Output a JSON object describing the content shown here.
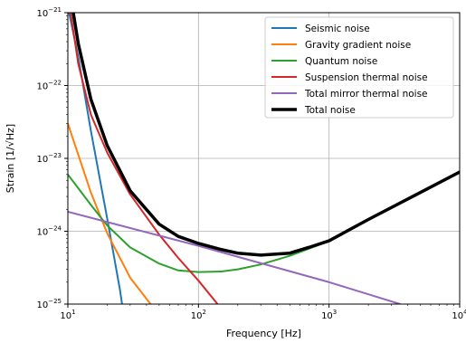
{
  "chart_data": {
    "type": "line",
    "xlabel": "Frequency [Hz]",
    "ylabel": "Strain [1/√Hz]",
    "x_scale": "log",
    "y_scale": "log",
    "xlim": [
      10,
      10000
    ],
    "ylim": [
      1e-25,
      1e-21
    ],
    "grid": true,
    "legend_position": "top-right",
    "x_ticks": [
      {
        "value": 10,
        "base": "10",
        "exp": "1"
      },
      {
        "value": 100,
        "base": "10",
        "exp": "2"
      },
      {
        "value": 1000,
        "base": "10",
        "exp": "3"
      },
      {
        "value": 10000,
        "base": "10",
        "exp": "4"
      }
    ],
    "y_ticks": [
      {
        "value": 1e-25,
        "base": "10",
        "exp": "−25"
      },
      {
        "value": 1e-24,
        "base": "10",
        "exp": "−24"
      },
      {
        "value": 1e-23,
        "base": "10",
        "exp": "−23"
      },
      {
        "value": 1e-22,
        "base": "10",
        "exp": "−22"
      },
      {
        "value": 1e-21,
        "base": "10",
        "exp": "−21"
      }
    ],
    "series": [
      {
        "name": "Seismic noise",
        "color": "#1f77b4",
        "width": 2,
        "points": [
          [
            10,
            1.2e-21
          ],
          [
            12,
            2.5e-22
          ],
          [
            15,
            2.4e-23
          ],
          [
            20,
            1.5e-24
          ],
          [
            25,
            1.6e-25
          ],
          [
            26,
            1e-25
          ]
        ]
      },
      {
        "name": "Gravity gradient noise",
        "color": "#ff7f0e",
        "width": 2,
        "points": [
          [
            10,
            3e-23
          ],
          [
            15,
            3.4e-24
          ],
          [
            20,
            9.4e-25
          ],
          [
            30,
            2.3e-25
          ],
          [
            43,
            1e-25
          ]
        ]
      },
      {
        "name": "Quantum noise",
        "color": "#2ca02c",
        "width": 2,
        "points": [
          [
            10,
            6e-24
          ],
          [
            15,
            2.3e-24
          ],
          [
            20,
            1.2e-24
          ],
          [
            30,
            6e-25
          ],
          [
            50,
            3.6e-25
          ],
          [
            70,
            2.9e-25
          ],
          [
            100,
            2.75e-25
          ],
          [
            150,
            2.8e-25
          ],
          [
            200,
            3e-25
          ],
          [
            300,
            3.5e-25
          ],
          [
            500,
            4.6e-25
          ],
          [
            1000,
            7.3e-25
          ]
        ]
      },
      {
        "name": "Suspension thermal noise",
        "color": "#d62728",
        "width": 2,
        "points": [
          [
            10.5,
            1e-21
          ],
          [
            12,
            2e-22
          ],
          [
            15,
            4e-23
          ],
          [
            20,
            1.2e-23
          ],
          [
            30,
            3.2e-24
          ],
          [
            50,
            9e-25
          ],
          [
            70,
            4.3e-25
          ],
          [
            100,
            2.1e-25
          ],
          [
            140,
            1e-25
          ]
        ]
      },
      {
        "name": "Total mirror thermal noise",
        "color": "#9467bd",
        "width": 2,
        "points": [
          [
            10,
            1.85e-24
          ],
          [
            100,
            6.3e-25
          ],
          [
            1000,
            2e-25
          ],
          [
            3500,
            1e-25
          ]
        ]
      },
      {
        "name": "Total noise",
        "color": "#000000",
        "width": 3.5,
        "points": [
          [
            11,
            1e-21
          ],
          [
            12,
            3.8e-22
          ],
          [
            15,
            6.5e-23
          ],
          [
            20,
            1.5e-23
          ],
          [
            30,
            3.6e-24
          ],
          [
            50,
            1.25e-24
          ],
          [
            70,
            8.5e-25
          ],
          [
            100,
            6.8e-25
          ],
          [
            150,
            5.6e-25
          ],
          [
            200,
            5e-25
          ],
          [
            300,
            4.7e-25
          ],
          [
            500,
            5e-25
          ],
          [
            700,
            6e-25
          ],
          [
            1000,
            7.4e-25
          ],
          [
            2000,
            1.45e-24
          ],
          [
            5000,
            3.4e-24
          ],
          [
            10000,
            6.5e-24
          ]
        ]
      }
    ]
  }
}
